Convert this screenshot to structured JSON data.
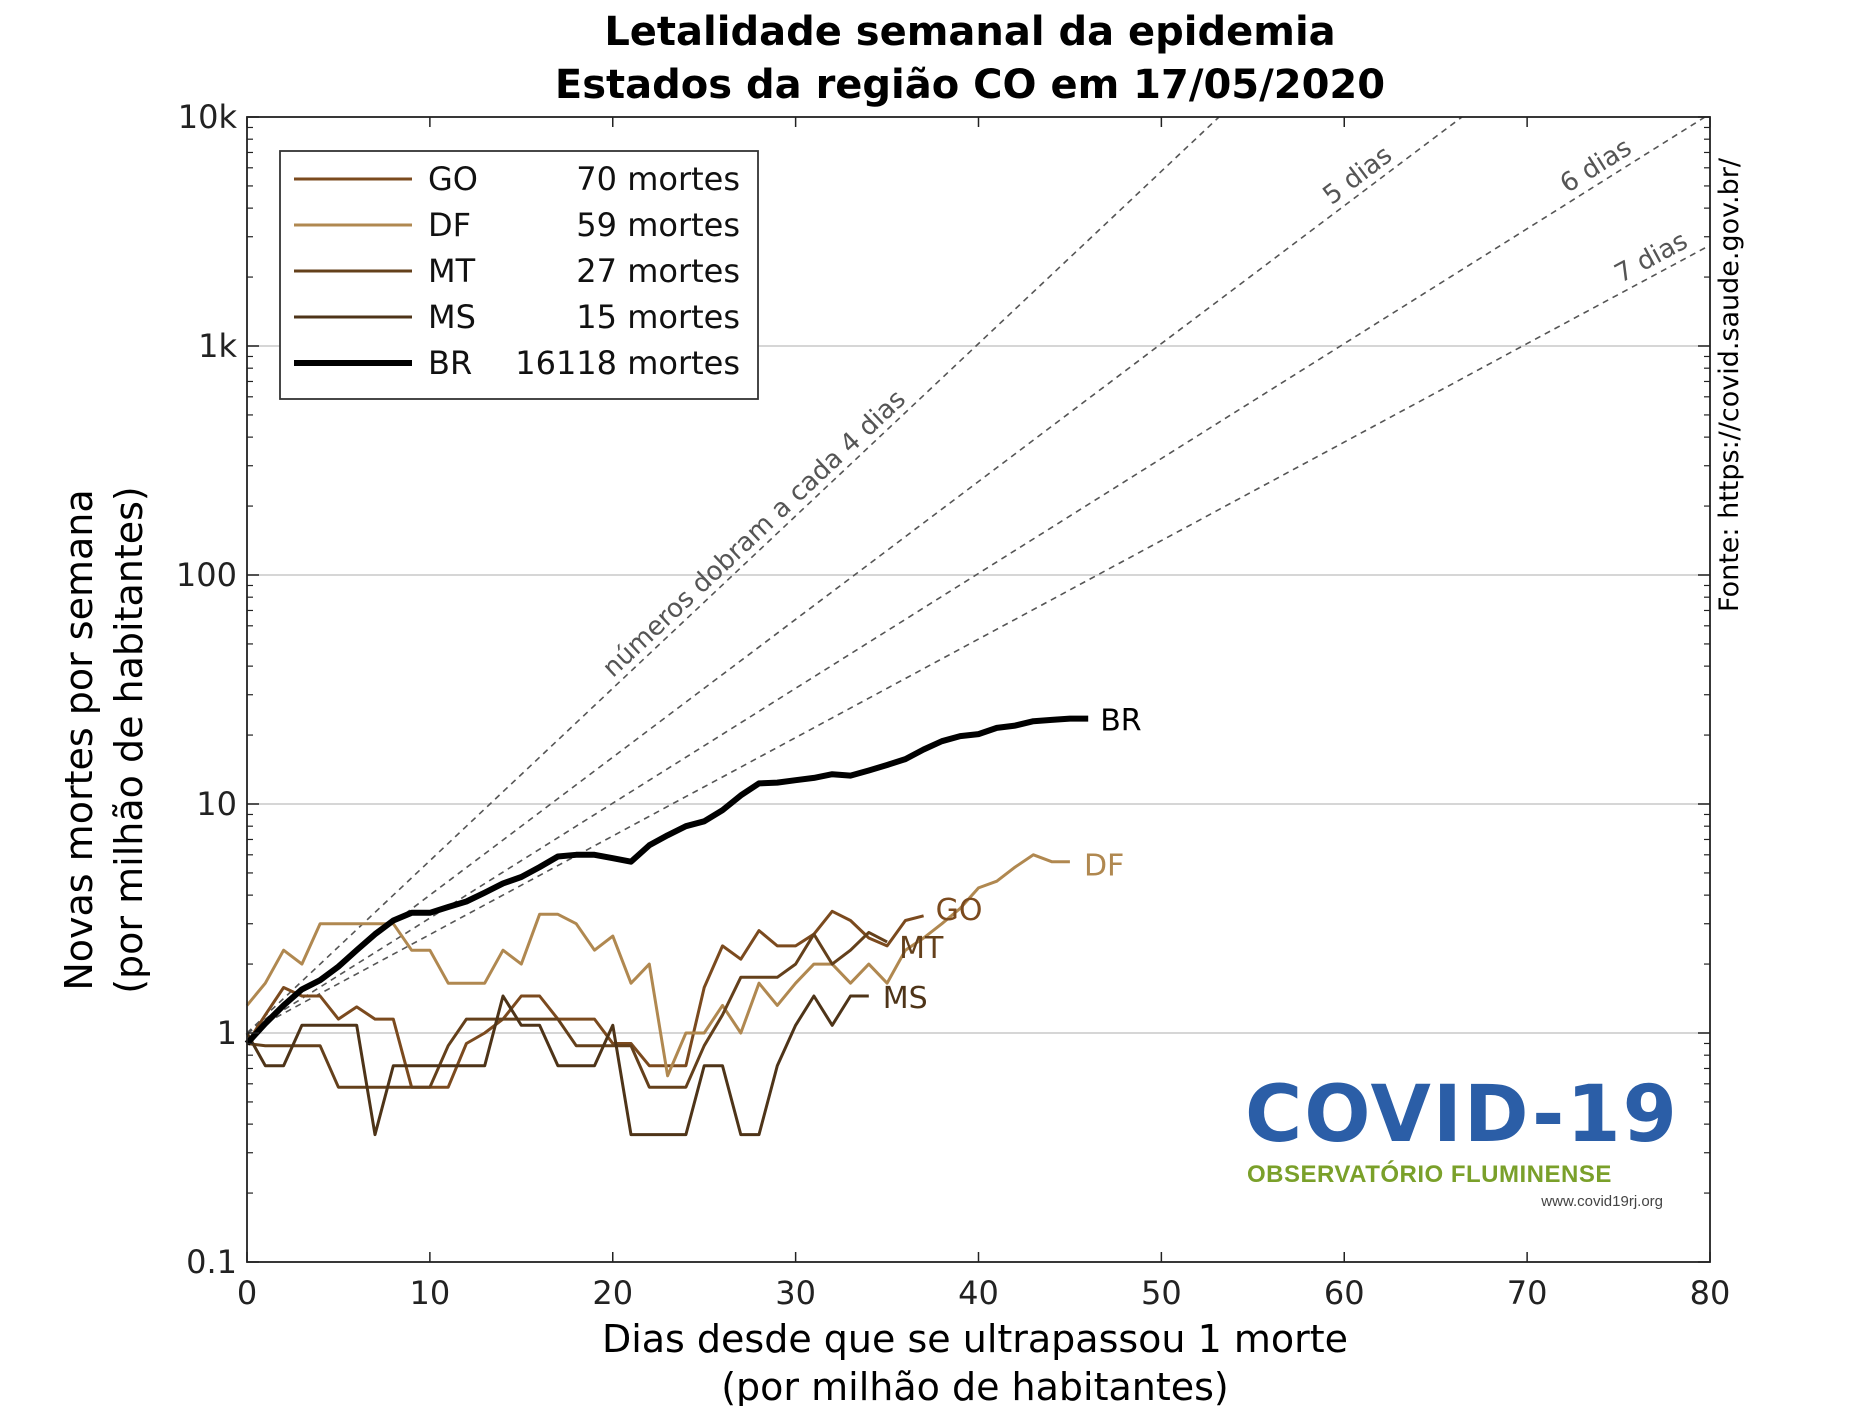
{
  "chart_data": {
    "type": "line",
    "title": "Letalidade semanal da epidemia",
    "subtitle": "Estados da região CO em 17/05/2020",
    "xlabel": "Dias desde que se ultrapassou 1 morte",
    "xlabel2": "(por milhão de habitantes)",
    "ylabel": "Novas mortes por semana",
    "ylabel2": "(por milhão de habitantes)",
    "xlim": [
      0,
      80
    ],
    "ylim": [
      0.1,
      10000
    ],
    "yscale": "log",
    "xticks": [
      0,
      10,
      20,
      30,
      40,
      50,
      60,
      70,
      80
    ],
    "xtick_labels": [
      "0",
      "10",
      "20",
      "30",
      "40",
      "50",
      "60",
      "70",
      "80"
    ],
    "yticks": [
      0.1,
      1,
      10,
      100,
      1000,
      10000
    ],
    "ytick_labels": [
      "0.1",
      "1",
      "10",
      "100",
      "1k",
      "10k"
    ],
    "grid": "horizontal",
    "legend_position": "top-left",
    "source_text": "Fonte: https://covid.saude.gov.br/",
    "series": [
      {
        "name": "GO",
        "legend": "70 mortes",
        "color": "#7b4a1e",
        "width": 3,
        "x": [
          0,
          1,
          2,
          3,
          4,
          5,
          6,
          7,
          8,
          9,
          10,
          11,
          12,
          13,
          14,
          15,
          16,
          17,
          18,
          19,
          20,
          21,
          22,
          23,
          24,
          25,
          26,
          27,
          28,
          29,
          30,
          31,
          32,
          33,
          34,
          35,
          36,
          37
        ],
        "y": [
          0.9,
          1.2,
          1.58,
          1.45,
          1.45,
          1.15,
          1.3,
          1.15,
          1.15,
          0.58,
          0.58,
          0.58,
          0.9,
          1.0,
          1.15,
          1.45,
          1.45,
          1.15,
          1.15,
          1.15,
          0.9,
          0.9,
          0.72,
          0.72,
          0.72,
          1.58,
          2.4,
          2.1,
          2.8,
          2.4,
          2.4,
          2.7,
          3.4,
          3.1,
          2.6,
          2.4,
          3.1,
          3.25
        ]
      },
      {
        "name": "DF",
        "legend": "59 mortes",
        "color": "#b08850",
        "width": 3,
        "x": [
          0,
          1,
          2,
          3,
          4,
          5,
          6,
          7,
          8,
          9,
          10,
          11,
          12,
          13,
          14,
          15,
          16,
          17,
          18,
          19,
          20,
          21,
          22,
          23,
          24,
          25,
          26,
          27,
          28,
          29,
          30,
          31,
          32,
          33,
          34,
          35,
          36,
          37,
          38,
          39,
          40,
          41,
          42,
          43,
          44,
          45
        ],
        "y": [
          1.32,
          1.65,
          2.3,
          2.0,
          3.0,
          3.0,
          3.0,
          3.0,
          3.0,
          2.3,
          2.3,
          1.65,
          1.65,
          1.65,
          2.3,
          2.0,
          3.3,
          3.3,
          3.0,
          2.3,
          2.65,
          1.65,
          2.0,
          0.65,
          1.0,
          1.0,
          1.32,
          1.0,
          1.65,
          1.32,
          1.65,
          2.0,
          2.0,
          1.65,
          2.0,
          1.65,
          2.3,
          2.6,
          3.0,
          3.5,
          4.3,
          4.6,
          5.3,
          6.0,
          5.6,
          5.6
        ]
      },
      {
        "name": "MT",
        "legend": "27 mortes",
        "color": "#64401b",
        "width": 3,
        "x": [
          0,
          1,
          2,
          3,
          4,
          5,
          6,
          7,
          8,
          9,
          10,
          11,
          12,
          13,
          14,
          15,
          16,
          17,
          18,
          19,
          20,
          21,
          22,
          23,
          24,
          25,
          26,
          27,
          28,
          29,
          30,
          31,
          32,
          33,
          34,
          35
        ],
        "y": [
          0.9,
          0.88,
          0.88,
          0.88,
          0.88,
          0.58,
          0.58,
          0.58,
          0.58,
          0.58,
          0.58,
          0.88,
          1.15,
          1.15,
          1.15,
          1.15,
          1.15,
          1.15,
          0.88,
          0.88,
          0.88,
          0.88,
          0.58,
          0.58,
          0.58,
          0.88,
          1.2,
          1.75,
          1.75,
          1.75,
          2.0,
          2.7,
          2.0,
          2.3,
          2.75,
          2.5
        ]
      },
      {
        "name": "MS",
        "legend": "15 mortes",
        "color": "#4e3418",
        "width": 3,
        "x": [
          0,
          1,
          2,
          3,
          4,
          5,
          6,
          7,
          8,
          9,
          10,
          11,
          12,
          13,
          14,
          15,
          16,
          17,
          18,
          19,
          20,
          21,
          22,
          23,
          24,
          25,
          26,
          27,
          28,
          29,
          30,
          31,
          32,
          33,
          34
        ],
        "y": [
          1.0,
          0.72,
          0.72,
          1.08,
          1.08,
          1.08,
          1.08,
          0.36,
          0.72,
          0.72,
          0.72,
          0.72,
          0.72,
          0.72,
          1.45,
          1.08,
          1.08,
          0.72,
          0.72,
          0.72,
          1.08,
          0.36,
          0.36,
          0.36,
          0.36,
          0.72,
          0.72,
          0.36,
          0.36,
          0.72,
          1.08,
          1.45,
          1.08,
          1.45,
          1.45
        ]
      },
      {
        "name": "BR",
        "legend": "16118 mortes",
        "color": "#000000",
        "width": 6,
        "x": [
          0,
          1,
          2,
          3,
          4,
          5,
          6,
          7,
          8,
          9,
          10,
          11,
          12,
          13,
          14,
          15,
          16,
          17,
          18,
          19,
          20,
          21,
          22,
          23,
          24,
          25,
          26,
          27,
          28,
          29,
          30,
          31,
          32,
          33,
          34,
          35,
          36,
          37,
          38,
          39,
          40,
          41,
          42,
          43,
          44,
          45,
          46
        ],
        "y": [
          0.9,
          1.1,
          1.32,
          1.55,
          1.7,
          1.95,
          2.3,
          2.7,
          3.1,
          3.35,
          3.35,
          3.55,
          3.75,
          4.1,
          4.5,
          4.8,
          5.3,
          5.9,
          6.0,
          6.0,
          5.8,
          5.6,
          6.6,
          7.3,
          8.0,
          8.4,
          9.4,
          10.9,
          12.3,
          12.4,
          12.7,
          13.0,
          13.5,
          13.3,
          14.0,
          14.8,
          15.7,
          17.3,
          18.8,
          19.8,
          20.2,
          21.5,
          22.0,
          23.0,
          23.3,
          23.6,
          23.6
        ]
      }
    ],
    "reference_lines": [
      {
        "label": "números dobram a cada 4 dias",
        "doubling_days": 4
      },
      {
        "label": "5 dias",
        "doubling_days": 5
      },
      {
        "label": "6 dias",
        "doubling_days": 6
      },
      {
        "label": "7 dias",
        "doubling_days": 7
      }
    ],
    "series_end_labels": [
      "GO",
      "DF",
      "MT",
      "MS",
      "BR"
    ]
  },
  "logo": {
    "covid_text": "COVID-19",
    "subtitle": "OBSERVATÓRIO FLUMINENSE",
    "url": "www.covid19rj.org"
  }
}
